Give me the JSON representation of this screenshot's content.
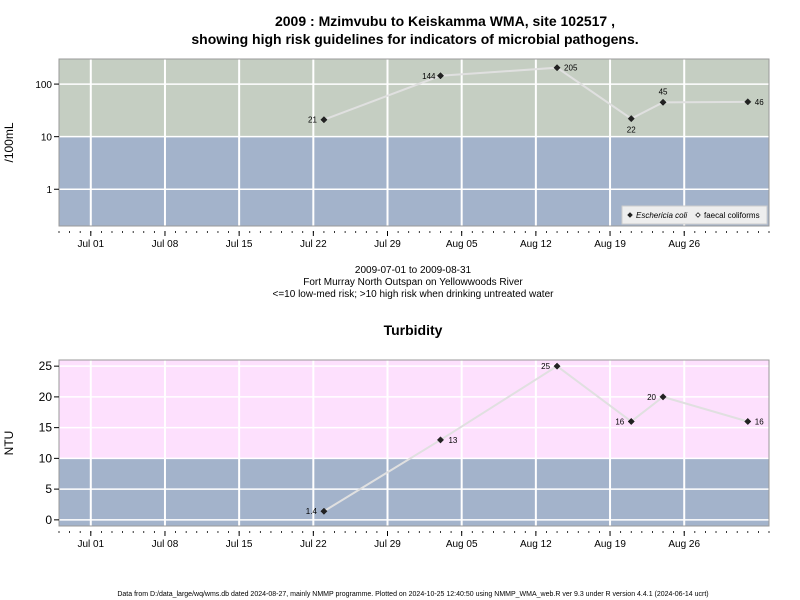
{
  "title_line1": "2009 : Mzimvubu to Keiskamma WMA, site 102517 ,",
  "title_line2": "showing high risk guidelines for indicators of microbial pathogens.",
  "info": {
    "date_range": "2009-07-01 to 2009-08-31",
    "site_name": "Fort Murray North Outspan on Yellowwoods River",
    "risk_note": "<=10 low-med risk; >10 high risk when drinking untreated water"
  },
  "footer": "Data from D:/data_large/wq/wms.db dated 2024-08-27, mainly NMMP programme. Plotted on 2024-10-25 12:40:50 using NMMP_WMA_web.R ver 9.3 under R version 4.4.1 (2024-06-14 ucrt)",
  "colors": {
    "high_band_top": "#c5cec2",
    "low_band": "#a3b3cb",
    "high_band_bottom": "#fde0fd",
    "grid": "#ffffff",
    "line": "#e0e0e0",
    "point": "#222222"
  },
  "chart_data": [
    {
      "type": "line",
      "title": "",
      "ylabel": "/100mL",
      "y_scale": "log",
      "ylim": [
        0.2,
        300
      ],
      "xlim": [
        "2009-06-28",
        "2009-09-03"
      ],
      "yticks": [
        1,
        10,
        100
      ],
      "ytick_labels": [
        "1",
        "10",
        "100"
      ],
      "x_ticks": [
        "2009-07-01",
        "2009-07-08",
        "2009-07-15",
        "2009-07-22",
        "2009-07-29",
        "2009-08-05",
        "2009-08-12",
        "2009-08-19",
        "2009-08-26"
      ],
      "x_tick_labels": [
        "Jul 01",
        "Jul 08",
        "Jul 15",
        "Jul 22",
        "Jul 29",
        "Aug 05",
        "Aug 12",
        "Aug 19",
        "Aug 26"
      ],
      "grid": true,
      "threshold": 10,
      "legend_position": "bottom-right",
      "series": [
        {
          "name": "Eschericia coli",
          "marker": "diamond",
          "x": [
            "2009-07-23",
            "2009-08-03",
            "2009-08-14",
            "2009-08-21",
            "2009-08-24",
            "2009-09-01"
          ],
          "values": [
            21,
            144,
            205,
            22,
            45,
            46
          ],
          "labels": [
            "21",
            "144",
            "205",
            "22",
            "45",
            "46"
          ]
        },
        {
          "name": "faecal coliforms",
          "marker": "diamond-open",
          "x": [],
          "values": [],
          "labels": []
        }
      ]
    },
    {
      "type": "line",
      "title": "Turbidity",
      "ylabel": "NTU",
      "y_scale": "linear",
      "ylim": [
        -1,
        26
      ],
      "xlim": [
        "2009-06-28",
        "2009-09-03"
      ],
      "yticks": [
        0,
        5,
        10,
        15,
        20,
        25
      ],
      "ytick_labels": [
        "0",
        "5",
        "10",
        "15",
        "20",
        "25"
      ],
      "x_ticks": [
        "2009-07-01",
        "2009-07-08",
        "2009-07-15",
        "2009-07-22",
        "2009-07-29",
        "2009-08-05",
        "2009-08-12",
        "2009-08-19",
        "2009-08-26"
      ],
      "x_tick_labels": [
        "Jul 01",
        "Jul 08",
        "Jul 15",
        "Jul 22",
        "Jul 29",
        "Aug 05",
        "Aug 12",
        "Aug 19",
        "Aug 26"
      ],
      "grid": true,
      "threshold": 10,
      "series": [
        {
          "name": "",
          "marker": "diamond",
          "x": [
            "2009-07-23",
            "2009-08-03",
            "2009-08-14",
            "2009-08-21",
            "2009-08-24",
            "2009-09-01"
          ],
          "values": [
            1.4,
            13,
            25,
            16,
            20,
            16
          ],
          "labels": [
            "1.4",
            "13",
            "25",
            "16",
            "20",
            "16"
          ]
        }
      ]
    }
  ]
}
